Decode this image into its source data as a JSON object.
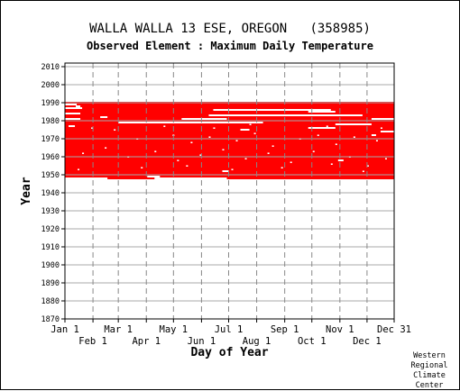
{
  "title": "WALLA WALLA 13 ESE, OREGON   (358985)",
  "subtitle": "Observed Element : Maximum Daily Temperature",
  "credit": [
    "Western",
    "Regional",
    "Climate",
    "Center"
  ],
  "chart_data": {
    "type": "heatmap",
    "title": "WALLA WALLA 13 ESE, OREGON   (358985)",
    "subtitle": "Observed Element : Maximum Daily Temperature",
    "xlabel": "Day of Year",
    "ylabel": "Year",
    "x_ticks_top_row": [
      "Jan 1",
      "Mar 1",
      "May 1",
      "Jul 1",
      "Sep 1",
      "Nov 1",
      "Dec 31"
    ],
    "x_ticks_bottom_row": [
      "Feb 1",
      "Apr 1",
      "Jun 1",
      "Aug 1",
      "Oct 1",
      "Dec 1"
    ],
    "x_tick_days": [
      1,
      32,
      60,
      91,
      121,
      152,
      182,
      213,
      244,
      274,
      305,
      335,
      365
    ],
    "y_ticks": [
      1870,
      1880,
      1890,
      1900,
      1910,
      1920,
      1930,
      1940,
      1950,
      1960,
      1970,
      1980,
      1990,
      2000,
      2010
    ],
    "ylim": [
      1870,
      2012
    ],
    "xlim": [
      1,
      365
    ],
    "grid": true,
    "data_color": "#ff0000",
    "record_years": [
      1948,
      1990
    ],
    "record_start_day": 1,
    "record_end_day": 365,
    "missing_segments": [
      {
        "year": 1989,
        "start_day": 1,
        "end_day": 14
      },
      {
        "year": 1988,
        "start_day": 13,
        "end_day": 18
      },
      {
        "year": 1987,
        "start_day": 1,
        "end_day": 20
      },
      {
        "year": 1986,
        "start_day": 165,
        "end_day": 295
      },
      {
        "year": 1985,
        "start_day": 270,
        "end_day": 300
      },
      {
        "year": 1984,
        "start_day": 1,
        "end_day": 18
      },
      {
        "year": 1983,
        "start_day": 160,
        "end_day": 330
      },
      {
        "year": 1982,
        "start_day": 40,
        "end_day": 48
      },
      {
        "year": 1981,
        "start_day": 1,
        "end_day": 18
      },
      {
        "year": 1981,
        "start_day": 130,
        "end_day": 180
      },
      {
        "year": 1981,
        "start_day": 340,
        "end_day": 365
      },
      {
        "year": 1979,
        "start_day": 60,
        "end_day": 220
      },
      {
        "year": 1978,
        "start_day": 300,
        "end_day": 340
      },
      {
        "year": 1977,
        "start_day": 5,
        "end_day": 12
      },
      {
        "year": 1976,
        "start_day": 270,
        "end_day": 300
      },
      {
        "year": 1975,
        "start_day": 195,
        "end_day": 205
      },
      {
        "year": 1974,
        "start_day": 350,
        "end_day": 365
      },
      {
        "year": 1972,
        "start_day": 340,
        "end_day": 345
      },
      {
        "year": 1958,
        "start_day": 303,
        "end_day": 309
      },
      {
        "year": 1952,
        "start_day": 175,
        "end_day": 182
      },
      {
        "year": 1949,
        "start_day": 92,
        "end_day": 106
      },
      {
        "year": 1948,
        "start_day": 1,
        "end_day": 48
      },
      {
        "year": 1948,
        "start_day": 100,
        "end_day": 180
      }
    ],
    "missing_dots": [
      [
        30,
        1976
      ],
      [
        55,
        1975
      ],
      [
        80,
        1970
      ],
      [
        120,
        1972
      ],
      [
        140,
        1968
      ],
      [
        160,
        1971
      ],
      [
        190,
        1969
      ],
      [
        210,
        1973
      ],
      [
        230,
        1966
      ],
      [
        260,
        1970
      ],
      [
        280,
        1972
      ],
      [
        300,
        1967
      ],
      [
        320,
        1971
      ],
      [
        345,
        1969
      ],
      [
        20,
        1962
      ],
      [
        45,
        1965
      ],
      [
        70,
        1960
      ],
      [
        100,
        1963
      ],
      [
        125,
        1958
      ],
      [
        150,
        1961
      ],
      [
        175,
        1964
      ],
      [
        200,
        1959
      ],
      [
        225,
        1962
      ],
      [
        250,
        1957
      ],
      [
        275,
        1963
      ],
      [
        295,
        1956
      ],
      [
        315,
        1960
      ],
      [
        335,
        1955
      ],
      [
        355,
        1959
      ],
      [
        15,
        1953
      ],
      [
        85,
        1954
      ],
      [
        135,
        1955
      ],
      [
        185,
        1953
      ],
      [
        240,
        1954
      ],
      [
        330,
        1952
      ],
      [
        110,
        1977
      ],
      [
        165,
        1976
      ],
      [
        205,
        1978
      ],
      [
        290,
        1977
      ],
      [
        350,
        1976
      ]
    ]
  }
}
